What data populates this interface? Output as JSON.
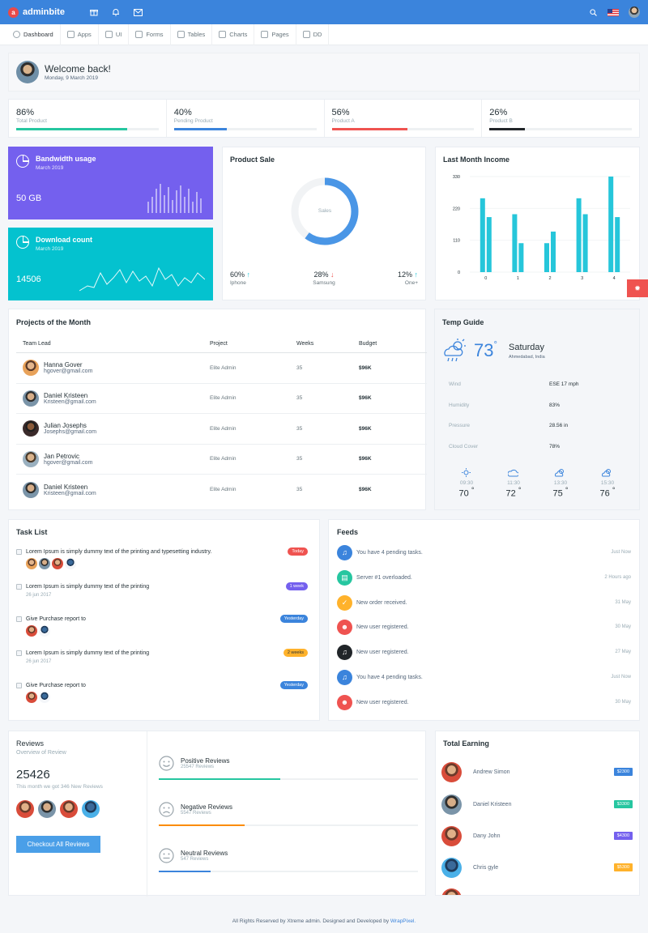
{
  "app": {
    "name": "adminbite",
    "logo_letter": "a",
    "brand_color": "#3b84dc"
  },
  "topbar": {
    "icons": [
      "gift-icon",
      "bell-icon",
      "mail-icon"
    ],
    "right_icons": [
      "search-icon",
      "us-flag-icon",
      "user-avatar"
    ]
  },
  "nav": [
    {
      "label": "Dashboard",
      "icon": "dashboard-icon"
    },
    {
      "label": "Apps",
      "icon": "apps-icon"
    },
    {
      "label": "UI",
      "icon": "ui-icon"
    },
    {
      "label": "Forms",
      "icon": "forms-icon"
    },
    {
      "label": "Tables",
      "icon": "tables-icon"
    },
    {
      "label": "Charts",
      "icon": "charts-icon"
    },
    {
      "label": "Pages",
      "icon": "pages-icon"
    },
    {
      "label": "DD",
      "icon": "dd-icon"
    }
  ],
  "welcome": {
    "title": "Welcome back!",
    "date": "Monday, 9 March 2019"
  },
  "stats": [
    {
      "value": "86%",
      "label": "Total Product",
      "progress": 0.78,
      "color": "#26c6a0"
    },
    {
      "value": "40%",
      "label": "Pending Product",
      "progress": 0.37,
      "color": "#3b84dc"
    },
    {
      "value": "56%",
      "label": "Product A",
      "progress": 0.53,
      "color": "#ef5350"
    },
    {
      "value": "26%",
      "label": "Product B",
      "progress": 0.25,
      "color": "#212529"
    }
  ],
  "bandwidth": {
    "title": "Bandwidth usage",
    "date": "March 2019",
    "value": "50 GB",
    "color": "#7460ee"
  },
  "download": {
    "title": "Download count",
    "date": "March 2019",
    "value": "14506",
    "color": "#04c2cf"
  },
  "product_sale": {
    "title": "Product Sale",
    "center_label": "Sales",
    "items": [
      {
        "value": "60%",
        "label": "Iphone",
        "trend": "up",
        "arrow": "↑"
      },
      {
        "value": "28%",
        "label": "Samsung",
        "trend": "down",
        "arrow": "↓"
      },
      {
        "value": "12%",
        "label": "One+",
        "trend": "up",
        "arrow": "↑"
      }
    ]
  },
  "income": {
    "title": "Last Month Income"
  },
  "chart_data": {
    "type": "bar",
    "categories": [
      "0",
      "1",
      "2",
      "3",
      "4"
    ],
    "series": [
      {
        "values": [
          255,
          200,
          100,
          255,
          330
        ],
        "color": "#26c6da"
      },
      {
        "values": [
          190,
          100,
          140,
          200,
          190
        ],
        "color": "#26c6da"
      }
    ],
    "yticks": [
      "0",
      "110",
      "220",
      "330"
    ],
    "ylim": [
      0,
      330
    ]
  },
  "projects": {
    "title": "Projects of the Month",
    "headers": [
      "Team Lead",
      "Project",
      "Weeks",
      "Budget"
    ],
    "rows": [
      {
        "name": "Hanna Gover",
        "email": "hgover@gmail.com",
        "project": "Elite Admin",
        "weeks": "35",
        "budget": "$96K"
      },
      {
        "name": "Daniel Kristeen",
        "email": "Kristeen@gmail.com",
        "project": "Elite Admin",
        "weeks": "35",
        "budget": "$96K"
      },
      {
        "name": "Julian Josephs",
        "email": "Josephs@gmail.com",
        "project": "Elite Admin",
        "weeks": "35",
        "budget": "$96K"
      },
      {
        "name": "Jan Petrovic",
        "email": "hgover@gmail.com",
        "project": "Elite Admin",
        "weeks": "35",
        "budget": "$96K"
      },
      {
        "name": "Daniel Kristeen",
        "email": "Kristeen@gmail.com",
        "project": "Elite Admin",
        "weeks": "35",
        "budget": "$96K"
      }
    ]
  },
  "weather": {
    "title": "Temp Guide",
    "temp": "73",
    "degree": "°",
    "day": "Saturday",
    "location": "Ahmedabad, India",
    "rows": [
      {
        "key": "Wind",
        "value": "ESE 17 mph"
      },
      {
        "key": "Humidity",
        "value": "83%"
      },
      {
        "key": "Pressure",
        "value": "28.56 in"
      },
      {
        "key": "Cloud Cover",
        "value": "78%"
      }
    ],
    "forecast": [
      {
        "time": "09:30",
        "temp": "70",
        "icon": "sun-icon"
      },
      {
        "time": "11:30",
        "temp": "72",
        "icon": "cloudy-icon"
      },
      {
        "time": "13:30",
        "temp": "75",
        "icon": "partly-cloudy-icon"
      },
      {
        "time": "15:30",
        "temp": "76",
        "icon": "partly-cloudy-icon"
      }
    ]
  },
  "tasks": {
    "title": "Task List",
    "items": [
      {
        "text": "Lorem Ipsum is simply dummy text of the printing and typesetting industry.",
        "badge": "Today",
        "badge_color": "#ef5350",
        "avatars": 4
      },
      {
        "text": "Lorem Ipsum is simply dummy text of the printing",
        "badge": "1 week",
        "badge_color": "#7460ee",
        "sub": "26 jun 2017"
      },
      {
        "text": "Give Purchase report to",
        "badge": "Yesterday",
        "badge_color": "#3b84dc",
        "avatars": 2
      },
      {
        "text": "Lorem Ipsum is simply dummy text of the printing",
        "badge": "2 weeks",
        "badge_color": "#ffb22b",
        "sub": "26 jun 2017"
      },
      {
        "text": "Give Purchase report to",
        "badge": "Yesterday",
        "badge_color": "#3b84dc",
        "avatars": 2
      }
    ]
  },
  "feeds": {
    "title": "Feeds",
    "items": [
      {
        "text": "You have 4 pending tasks.",
        "time": "Just Now",
        "color": "#3b84dc",
        "icon": "bell-icon",
        "glyph": "♫"
      },
      {
        "text": "Server #1 overloaded.",
        "time": "2 Hours ago",
        "color": "#26c6a0",
        "icon": "server-icon",
        "glyph": "▤"
      },
      {
        "text": "New order received.",
        "time": "31 May",
        "color": "#ffb22b",
        "icon": "cart-icon",
        "glyph": "✓"
      },
      {
        "text": "New user registered.",
        "time": "30 May",
        "color": "#ef5350",
        "icon": "user-icon",
        "glyph": "☻"
      },
      {
        "text": "New user registered.",
        "time": "27 May",
        "color": "#212529",
        "icon": "bell-icon",
        "glyph": "♫"
      },
      {
        "text": "You have 4 pending tasks.",
        "time": "Just Now",
        "color": "#3b84dc",
        "icon": "bell-icon",
        "glyph": "♫"
      },
      {
        "text": "New user registered.",
        "time": "30 May",
        "color": "#ef5350",
        "icon": "user-icon",
        "glyph": "☻"
      }
    ]
  },
  "reviews": {
    "title": "Reviews",
    "subtitle": "Overview of Review",
    "total": "25426",
    "note": "This month we got 346 New Reviews",
    "button": "Checkout All Reviews",
    "items": [
      {
        "name": "Positive Reviews",
        "count": "25547 Reviews",
        "progress": 0.47,
        "color": "#26c6a0"
      },
      {
        "name": "Negative Reviews",
        "count": "5547 Reviews",
        "progress": 0.33,
        "color": "#fb8c00"
      },
      {
        "name": "Neutral Reviews",
        "count": "547 Reviews",
        "progress": 0.2,
        "color": "#3b84dc"
      }
    ]
  },
  "earning": {
    "title": "Total Earning",
    "rows": [
      {
        "name": "Andrew Simon",
        "amount": "$2300",
        "color": "#3b84dc"
      },
      {
        "name": "Daniel Kristeen",
        "amount": "$3300",
        "color": "#26c6a0"
      },
      {
        "name": "Dany John",
        "amount": "$4300",
        "color": "#7460ee"
      },
      {
        "name": "Chris gyle",
        "amount": "$5300",
        "color": "#ffb22b"
      },
      {
        "name": "",
        "amount": "",
        "color": "#ef5350"
      }
    ]
  },
  "footer": {
    "text": "All Rights Reserved by Xtreme admin. Designed and Developed by ",
    "link": "WrapPixel."
  }
}
